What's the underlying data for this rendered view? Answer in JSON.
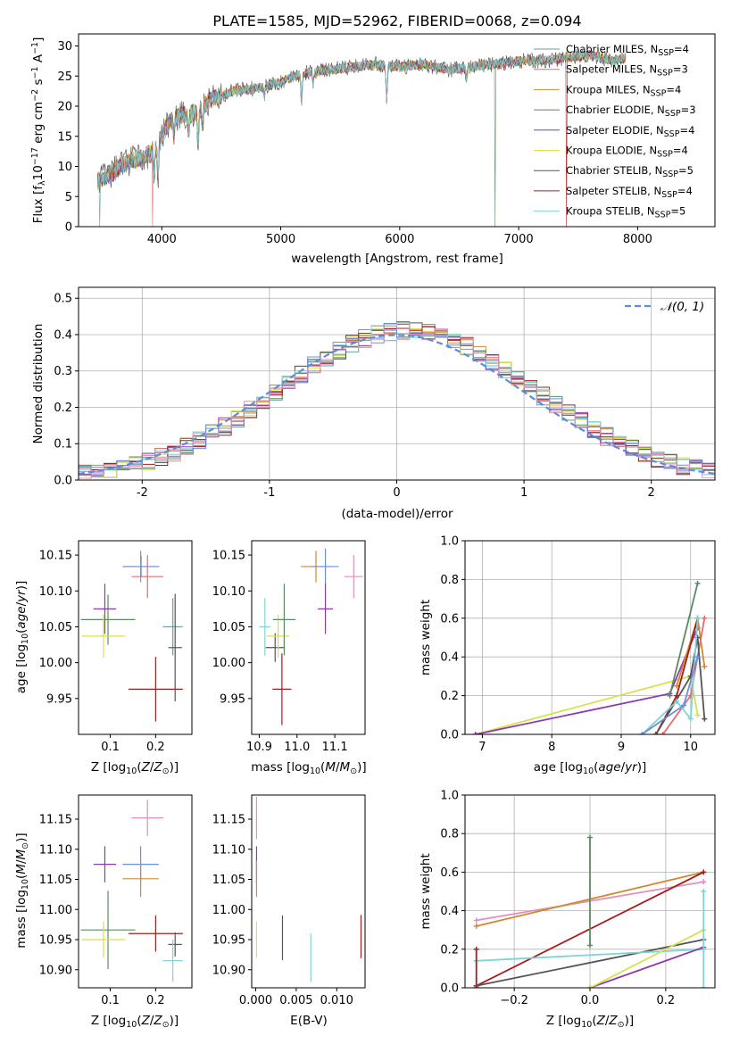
{
  "title": "PLATE=1585, MJD=52962, FIBERID=0068, z=0.094",
  "colors": {
    "Chabrier MILES": "#6c9ea8",
    "Salpeter MILES": "#e0706e",
    "Kroupa MILES": "#d08a32",
    "Chabrier ELODIE": "#5b8a62",
    "Salpeter ELODIE": "#8e3ab4",
    "Kroupa ELODIE": "#d8e04a",
    "Chabrier STELIB": "#555555",
    "Salpeter STELIB": "#a81d1d",
    "Kroupa STELIB": "#7fd3d8",
    "extra1": "#6a8fe0",
    "extra2": "#e090c0",
    "extra3": "#e0802a",
    "normal": "#5b8ed6"
  },
  "chart_data": [
    {
      "id": "spectrum",
      "type": "line",
      "xlabel": "wavelength [Angstrom, rest frame]",
      "ylabel_parts": [
        "Flux [f",
        "λ",
        "10",
        "−17",
        " erg cm",
        "−2",
        " s",
        "−1",
        " A",
        "−1",
        "]"
      ],
      "xlim": [
        3300,
        8650
      ],
      "ylim": [
        0,
        32
      ],
      "xticks": [
        4000,
        5000,
        6000,
        7000,
        8000
      ],
      "yticks": [
        0,
        5,
        10,
        15,
        20,
        25,
        30
      ],
      "legend_position": "top-right",
      "legend": [
        {
          "name": "Chabrier MILES",
          "nssp": "4"
        },
        {
          "name": "Salpeter MILES",
          "nssp": "3"
        },
        {
          "name": "Kroupa MILES",
          "nssp": "4"
        },
        {
          "name": "Chabrier ELODIE",
          "nssp": "3"
        },
        {
          "name": "Salpeter ELODIE",
          "nssp": "4"
        },
        {
          "name": "Kroupa ELODIE",
          "nssp": "4"
        },
        {
          "name": "Chabrier STELIB",
          "nssp": "5"
        },
        {
          "name": "Salpeter STELIB",
          "nssp": "4"
        },
        {
          "name": "Kroupa STELIB",
          "nssp": "5"
        }
      ],
      "nssp_label": "N",
      "nssp_sub": "SSP",
      "continuum": [
        [
          3450,
          7.5
        ],
        [
          3550,
          8.5
        ],
        [
          3650,
          10
        ],
        [
          3750,
          11
        ],
        [
          3850,
          11.5
        ],
        [
          3950,
          13
        ],
        [
          4050,
          17
        ],
        [
          4150,
          18.5
        ],
        [
          4300,
          19
        ],
        [
          4400,
          21
        ],
        [
          4600,
          22.5
        ],
        [
          4800,
          23
        ],
        [
          5000,
          24
        ],
        [
          5200,
          25.5
        ],
        [
          5400,
          26
        ],
        [
          5600,
          26.5
        ],
        [
          5800,
          27
        ],
        [
          6000,
          26.5
        ],
        [
          6200,
          27
        ],
        [
          6400,
          26
        ],
        [
          6600,
          26.5
        ],
        [
          6800,
          27
        ],
        [
          7000,
          27.5
        ],
        [
          7200,
          27.5
        ],
        [
          7400,
          28
        ],
        [
          7600,
          28.5
        ],
        [
          7800,
          27.5
        ],
        [
          7900,
          28
        ]
      ],
      "absorptions": [
        [
          3934,
          4
        ],
        [
          3969,
          6
        ],
        [
          4102,
          3
        ],
        [
          4227,
          3
        ],
        [
          4304,
          5
        ],
        [
          4341,
          3
        ],
        [
          4861,
          2
        ],
        [
          5175,
          5
        ],
        [
          5270,
          2
        ],
        [
          5890,
          6
        ],
        [
          6563,
          2
        ]
      ],
      "drops": [
        [
          3480,
          0
        ],
        [
          3920,
          1
        ],
        [
          6800,
          3
        ],
        [
          7400,
          7
        ]
      ]
    },
    {
      "id": "residuals",
      "type": "histogram",
      "xlabel": "(data-model)/error",
      "ylabel": "Normed distribution",
      "xlim": [
        -2.5,
        2.5
      ],
      "ylim": [
        0,
        0.53
      ],
      "xticks": [
        -2,
        -1,
        0,
        1,
        2
      ],
      "yticks": [
        0.0,
        0.1,
        0.2,
        0.3,
        0.4,
        0.5
      ],
      "ytick_labels": [
        "0.0",
        "0.1",
        "0.2",
        "0.3",
        "0.4",
        "0.5"
      ],
      "grid": true,
      "bin_width": 0.1,
      "legend_position": "top-right",
      "normal_label": "𝒩(0, 1)"
    },
    {
      "id": "age_vs_z",
      "type": "errorbar",
      "xlabel": "Z [log",
      "xlabel_sub": "10",
      "xlabel_rest": "(Z/Z",
      "ylabel": "age  [log",
      "ylabel_sub": "10",
      "ylabel_rest": "(age/yr)]",
      "xlim": [
        0.03,
        0.28
      ],
      "ylim": [
        9.9,
        10.17
      ],
      "xticks": [
        0.1,
        0.2
      ],
      "yticks": [
        9.95,
        10.0,
        10.05,
        10.1,
        10.15
      ],
      "ytick_labels": [
        "9.95",
        "10.00",
        "10.05",
        "10.10",
        "10.15"
      ],
      "points": [
        {
          "c": "Chabrier MILES",
          "x": 0.238,
          "y": 10.05,
          "xe": 0.022,
          "ye": 0.04
        },
        {
          "c": "Salpeter MILES",
          "x": 0.182,
          "y": 10.12,
          "xe": 0.035,
          "ye": 0.03
        },
        {
          "c": "Kroupa MILES",
          "x": 0.167,
          "y": 10.134,
          "xe": 0.04,
          "ye": 0.022
        },
        {
          "c": "Chabrier ELODIE",
          "x": 0.095,
          "y": 10.06,
          "xe": 0.06,
          "ye": 0.035
        },
        {
          "c": "Salpeter ELODIE",
          "x": 0.088,
          "y": 10.075,
          "xe": 0.025,
          "ye": 0.035
        },
        {
          "c": "Kroupa ELODIE",
          "x": 0.085,
          "y": 10.037,
          "xe": 0.048,
          "ye": 0.03
        },
        {
          "c": "Chabrier STELIB",
          "x": 0.243,
          "y": 10.021,
          "xe": 0.015,
          "ye": 0.075
        },
        {
          "c": "Salpeter STELIB",
          "x": 0.2,
          "y": 9.963,
          "xe": 0.06,
          "ye": 0.045
        },
        {
          "c": "extra1",
          "x": 0.168,
          "y": 10.134,
          "xe": 0.04,
          "ye": 0.015
        }
      ]
    },
    {
      "id": "age_vs_mass",
      "type": "errorbar",
      "xlabel": "mass [log",
      "xlabel_sub": "10",
      "xlabel_rest": "(M/M",
      "xlim": [
        10.88,
        11.18
      ],
      "ylim": [
        9.9,
        10.17
      ],
      "xticks": [
        10.9,
        11.0,
        11.1
      ],
      "xtick_labels": [
        "10.9",
        "11.0",
        "11.1"
      ],
      "yticks": [
        9.95,
        10.0,
        10.05,
        10.1,
        10.15
      ],
      "ytick_labels": [
        "9.95",
        "10.00",
        "10.05",
        "10.10",
        "10.15"
      ],
      "points": [
        {
          "c": "Kroupa STELIB",
          "x": 10.915,
          "y": 10.05,
          "xe": 0.015,
          "ye": 0.04
        },
        {
          "c": "Chabrier STELIB",
          "x": 10.942,
          "y": 10.021,
          "xe": 0.025,
          "ye": 0.02
        },
        {
          "c": "Salpeter STELIB",
          "x": 10.96,
          "y": 9.963,
          "xe": 0.025,
          "ye": 0.05
        },
        {
          "c": "Kroupa ELODIE",
          "x": 10.95,
          "y": 10.037,
          "xe": 0.03,
          "ye": 0.03
        },
        {
          "c": "Chabrier ELODIE",
          "x": 10.966,
          "y": 10.06,
          "xe": 0.03,
          "ye": 0.05
        },
        {
          "c": "Kroupa MILES",
          "x": 11.05,
          "y": 10.134,
          "xe": 0.04,
          "ye": 0.022
        },
        {
          "c": "extra1",
          "x": 11.075,
          "y": 10.134,
          "xe": 0.035,
          "ye": 0.025
        },
        {
          "c": "Salpeter ELODIE",
          "x": 11.075,
          "y": 10.075,
          "xe": 0.02,
          "ye": 0.035
        },
        {
          "c": "extra2",
          "x": 11.15,
          "y": 10.12,
          "xe": 0.025,
          "ye": 0.03
        }
      ]
    },
    {
      "id": "weight_vs_age",
      "type": "line",
      "xlabel": "age  [log",
      "xlabel_sub": "10",
      "xlabel_rest": "(age/yr)]",
      "ylabel": "mass weight",
      "xlim": [
        6.75,
        10.35
      ],
      "ylim": [
        0,
        1.0
      ],
      "xticks": [
        7,
        8,
        9,
        10
      ],
      "yticks": [
        0.0,
        0.2,
        0.4,
        0.6,
        0.8,
        1.0
      ],
      "ytick_labels": [
        "0.0",
        "0.2",
        "0.4",
        "0.6",
        "0.8",
        "1.0"
      ],
      "grid": true,
      "series": [
        {
          "c": "Kroupa ELODIE",
          "points": [
            [
              6.9,
              0.0
            ],
            [
              10.0,
              0.3
            ],
            [
              10.1,
              0.1
            ]
          ]
        },
        {
          "c": "Salpeter ELODIE",
          "points": [
            [
              6.9,
              0.0
            ],
            [
              9.7,
              0.21
            ],
            [
              10.1,
              0.55
            ]
          ]
        },
        {
          "c": "Chabrier ELODIE",
          "points": [
            [
              9.7,
              0.2
            ],
            [
              10.1,
              0.78
            ]
          ]
        },
        {
          "c": "Kroupa MILES",
          "points": [
            [
              9.8,
              0.25
            ],
            [
              10.1,
              0.6
            ],
            [
              10.2,
              0.35
            ]
          ]
        },
        {
          "c": "Salpeter MILES",
          "points": [
            [
              9.6,
              0.0
            ],
            [
              10.0,
              0.2
            ],
            [
              10.2,
              0.6
            ]
          ]
        },
        {
          "c": "Salpeter STELIB",
          "points": [
            [
              9.5,
              0.0
            ],
            [
              9.8,
              0.2
            ],
            [
              10.1,
              0.6
            ]
          ]
        },
        {
          "c": "Chabrier STELIB",
          "points": [
            [
              9.5,
              0.0
            ],
            [
              10.0,
              0.3
            ],
            [
              10.1,
              0.5
            ],
            [
              10.2,
              0.08
            ]
          ]
        },
        {
          "c": "Kroupa STELIB",
          "points": [
            [
              9.3,
              0.0
            ],
            [
              9.8,
              0.17
            ],
            [
              10.0,
              0.08
            ],
            [
              10.1,
              0.6
            ]
          ]
        },
        {
          "c": "extra1",
          "points": [
            [
              9.3,
              0.0
            ],
            [
              9.9,
              0.15
            ],
            [
              10.1,
              0.4
            ]
          ]
        }
      ]
    },
    {
      "id": "mass_vs_z",
      "type": "errorbar",
      "xlabel": "Z [log",
      "xlabel_sub": "10",
      "xlabel_rest": "(Z/Z",
      "ylabel": "mass [log",
      "ylabel_sub": "10",
      "ylabel_rest": "(M/M",
      "xlim": [
        0.03,
        0.28
      ],
      "ylim": [
        10.87,
        11.19
      ],
      "xticks": [
        0.1,
        0.2
      ],
      "yticks": [
        10.9,
        10.95,
        11.0,
        11.05,
        11.1,
        11.15
      ],
      "ytick_labels": [
        "10.90",
        "10.95",
        "11.00",
        "11.05",
        "11.10",
        "11.15"
      ],
      "points": [
        {
          "c": "extra2",
          "x": 0.182,
          "y": 11.152,
          "xe": 0.035,
          "ye": 0.03
        },
        {
          "c": "Salpeter ELODIE",
          "x": 0.088,
          "y": 11.075,
          "xe": 0.025,
          "ye": 0.03
        },
        {
          "c": "extra1",
          "x": 0.167,
          "y": 11.075,
          "xe": 0.04,
          "ye": 0.03
        },
        {
          "c": "Kroupa MILES",
          "x": 0.167,
          "y": 11.051,
          "xe": 0.04,
          "ye": 0.03
        },
        {
          "c": "Chabrier ELODIE",
          "x": 0.095,
          "y": 10.966,
          "xe": 0.06,
          "ye": 0.065
        },
        {
          "c": "Kroupa ELODIE",
          "x": 0.085,
          "y": 10.95,
          "xe": 0.048,
          "ye": 0.03
        },
        {
          "c": "Salpeter STELIB",
          "x": 0.2,
          "y": 10.96,
          "xe": 0.06,
          "ye": 0.03
        },
        {
          "c": "Chabrier STELIB",
          "x": 0.243,
          "y": 10.942,
          "xe": 0.015,
          "ye": 0.02
        },
        {
          "c": "Kroupa STELIB",
          "x": 0.238,
          "y": 10.915,
          "xe": 0.022,
          "ye": 0.035
        }
      ]
    },
    {
      "id": "mass_vs_ebv",
      "type": "errorbar",
      "xlabel": "E(B-V)",
      "xlim": [
        -0.0005,
        0.0135
      ],
      "ylim": [
        10.87,
        11.19
      ],
      "xticks": [
        0.0,
        0.005,
        0.01
      ],
      "xtick_labels": [
        "0.000",
        "0.005",
        "0.010"
      ],
      "yticks": [
        10.9,
        10.95,
        11.0,
        11.05,
        11.1,
        11.15
      ],
      "ytick_labels": [
        "10.90",
        "10.95",
        "11.00",
        "11.05",
        "11.10",
        "11.15"
      ],
      "points": [
        {
          "c": "extra2",
          "x": 0.0001,
          "y": 11.152,
          "xe": 0,
          "ye": 0.035
        },
        {
          "c": "Salpeter ELODIE",
          "x": 0.0001,
          "y": 11.075,
          "xe": 0,
          "ye": 0.03
        },
        {
          "c": "Kroupa MILES",
          "x": 0.0001,
          "y": 11.051,
          "xe": 0,
          "ye": 0.03
        },
        {
          "c": "Kroupa ELODIE",
          "x": 0.0001,
          "y": 10.95,
          "xe": 0,
          "ye": 0.03
        },
        {
          "c": "Chabrier STELIB",
          "x": 0.0033,
          "y": 10.953,
          "xe": 0,
          "ye": 0.037
        },
        {
          "c": "Kroupa STELIB",
          "x": 0.0068,
          "y": 10.92,
          "xe": 0,
          "ye": 0.04
        },
        {
          "c": "Salpeter STELIB",
          "x": 0.013,
          "y": 10.955,
          "xe": 0,
          "ye": 0.036
        }
      ]
    },
    {
      "id": "weight_vs_z",
      "type": "line",
      "xlabel": "Z [log",
      "xlabel_sub": "10",
      "xlabel_rest": "(Z/Z",
      "ylabel": "mass weight",
      "xlim": [
        -0.33,
        0.33
      ],
      "ylim": [
        0,
        1.0
      ],
      "xticks": [
        -0.2,
        0.0,
        0.2
      ],
      "xtick_labels": [
        "−0.2",
        "0.0",
        "0.2"
      ],
      "yticks": [
        0.0,
        0.2,
        0.4,
        0.6,
        0.8,
        1.0
      ],
      "ytick_labels": [
        "0.0",
        "0.2",
        "0.4",
        "0.6",
        "0.8",
        "1.0"
      ],
      "grid": true,
      "series": [
        {
          "c": "extra2",
          "points": [
            [
              -0.3,
              0.35
            ],
            [
              0.3,
              0.55
            ]
          ]
        },
        {
          "c": "Kroupa MILES",
          "points": [
            [
              -0.3,
              0.32
            ],
            [
              0.3,
              0.6
            ]
          ]
        },
        {
          "c": "Salpeter STELIB",
          "points": [
            [
              -0.3,
              0.01
            ],
            [
              0.3,
              0.6
            ]
          ]
        },
        {
          "c": "Chabrier STELIB",
          "points": [
            [
              -0.3,
              0.01
            ],
            [
              0.3,
              0.25
            ]
          ]
        },
        {
          "c": "Kroupa STELIB",
          "points": [
            [
              -0.3,
              0.14
            ],
            [
              0.3,
              0.2
            ]
          ]
        },
        {
          "c": "Salpeter ELODIE",
          "points": [
            [
              0.0,
              0.0
            ],
            [
              0.3,
              0.21
            ]
          ]
        },
        {
          "c": "Kroupa ELODIE",
          "points": [
            [
              0.0,
              0.0
            ],
            [
              0.3,
              0.3
            ]
          ]
        },
        {
          "c": "Chabrier ELODIE",
          "points": [
            [
              0.0,
              0.78
            ],
            [
              0.0,
              0.22
            ]
          ]
        },
        {
          "c": "Salpeter STELIB",
          "points": [
            [
              -0.3,
              0.2
            ],
            [
              -0.3,
              0.0
            ]
          ]
        },
        {
          "c": "Kroupa STELIB",
          "points": [
            [
              0.3,
              0.5
            ],
            [
              0.3,
              0.0
            ]
          ]
        }
      ]
    }
  ]
}
